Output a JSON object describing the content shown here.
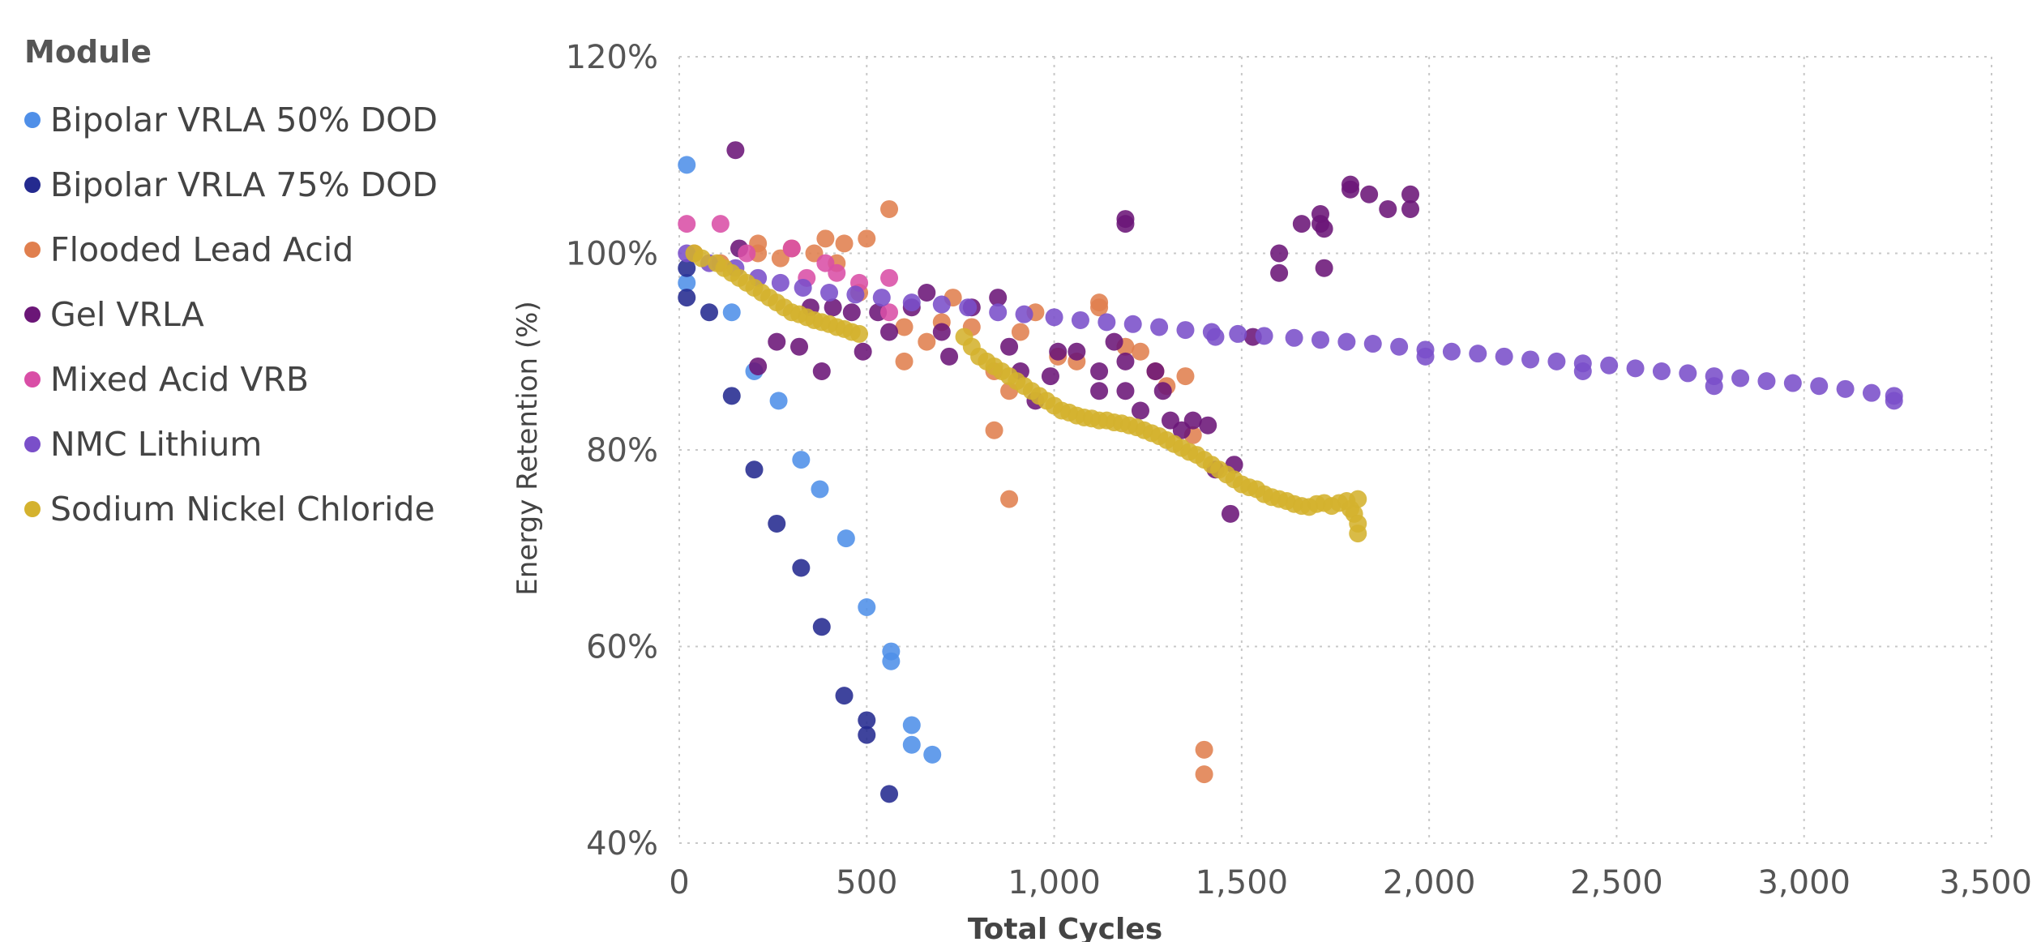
{
  "legend": {
    "title": "Module",
    "items": [
      {
        "label": "Bipolar VRLA 50% DOD",
        "color": "#4f8fe8"
      },
      {
        "label": "Bipolar VRLA 75% DOD",
        "color": "#242a8f"
      },
      {
        "label": "Flooded Lead Acid",
        "color": "#e07f4e"
      },
      {
        "label": "Gel VRLA",
        "color": "#6b1677"
      },
      {
        "label": "Mixed Acid VRB",
        "color": "#d94ea6"
      },
      {
        "label": "NMC Lithium",
        "color": "#7a4fc9"
      },
      {
        "label": "Sodium Nickel Chloride",
        "color": "#d4b22e"
      }
    ]
  },
  "chart_data": {
    "type": "scatter",
    "xlabel": "Total Cycles",
    "ylabel": "Energy Retention (%)",
    "xlim": [
      0,
      3500
    ],
    "ylim": [
      40,
      120
    ],
    "xticks": [
      0,
      500,
      1000,
      1500,
      2000,
      2500,
      3000,
      3500
    ],
    "xtick_labels": [
      "0",
      "500",
      "1,000",
      "1,500",
      "2,000",
      "2,500",
      "3,000",
      "3,500"
    ],
    "yticks": [
      40,
      60,
      80,
      100,
      120
    ],
    "ytick_labels": [
      "40%",
      "60%",
      "80%",
      "100%",
      "120%"
    ],
    "grid": true,
    "legend_position": "left",
    "series": [
      {
        "name": "Bipolar VRLA 50% DOD",
        "color": "#4f8fe8",
        "points": [
          [
            20,
            109
          ],
          [
            20,
            97
          ],
          [
            140,
            94
          ],
          [
            200,
            88
          ],
          [
            265,
            85
          ],
          [
            325,
            79
          ],
          [
            375,
            76
          ],
          [
            445,
            71
          ],
          [
            500,
            64
          ],
          [
            565,
            59.5
          ],
          [
            565,
            58.5
          ],
          [
            620,
            52
          ],
          [
            620,
            50
          ],
          [
            675,
            49
          ]
        ]
      },
      {
        "name": "Bipolar VRLA 75% DOD",
        "color": "#242a8f",
        "points": [
          [
            20,
            98.5
          ],
          [
            20,
            95.5
          ],
          [
            80,
            94
          ],
          [
            140,
            85.5
          ],
          [
            200,
            78
          ],
          [
            260,
            72.5
          ],
          [
            325,
            68
          ],
          [
            380,
            62
          ],
          [
            440,
            55
          ],
          [
            500,
            52.5
          ],
          [
            500,
            51
          ],
          [
            560,
            45
          ]
        ]
      },
      {
        "name": "Flooded Lead Acid",
        "color": "#e07f4e",
        "points": [
          [
            40,
            100
          ],
          [
            110,
            99
          ],
          [
            210,
            101
          ],
          [
            210,
            100
          ],
          [
            270,
            99.5
          ],
          [
            300,
            100.5
          ],
          [
            360,
            100
          ],
          [
            390,
            101.5
          ],
          [
            440,
            101
          ],
          [
            500,
            101.5
          ],
          [
            560,
            104.5
          ],
          [
            420,
            99
          ],
          [
            480,
            96
          ],
          [
            600,
            92.5
          ],
          [
            600,
            89
          ],
          [
            660,
            91
          ],
          [
            700,
            93
          ],
          [
            730,
            95.5
          ],
          [
            780,
            92.5
          ],
          [
            840,
            88
          ],
          [
            840,
            82
          ],
          [
            880,
            86
          ],
          [
            880,
            75
          ],
          [
            910,
            92
          ],
          [
            950,
            94
          ],
          [
            1010,
            89.5
          ],
          [
            1060,
            89
          ],
          [
            1120,
            95
          ],
          [
            1120,
            94.5
          ],
          [
            1190,
            90.5
          ],
          [
            1230,
            90
          ],
          [
            1270,
            88
          ],
          [
            1300,
            86.5
          ],
          [
            1350,
            87.5
          ],
          [
            1370,
            81.5
          ],
          [
            1400,
            49.5
          ],
          [
            1400,
            47
          ]
        ]
      },
      {
        "name": "Gel VRLA",
        "color": "#6b1677",
        "points": [
          [
            150,
            110.5
          ],
          [
            160,
            100.5
          ],
          [
            210,
            88.5
          ],
          [
            260,
            91
          ],
          [
            320,
            90.5
          ],
          [
            350,
            94.5
          ],
          [
            380,
            88
          ],
          [
            410,
            94.5
          ],
          [
            460,
            94
          ],
          [
            490,
            90
          ],
          [
            530,
            94
          ],
          [
            560,
            92
          ],
          [
            620,
            94.5
          ],
          [
            660,
            96
          ],
          [
            700,
            92
          ],
          [
            720,
            89.5
          ],
          [
            780,
            94.5
          ],
          [
            850,
            95.5
          ],
          [
            880,
            90.5
          ],
          [
            910,
            88
          ],
          [
            950,
            85
          ],
          [
            990,
            87.5
          ],
          [
            1010,
            90
          ],
          [
            1060,
            90
          ],
          [
            1120,
            88
          ],
          [
            1120,
            86
          ],
          [
            1160,
            91
          ],
          [
            1190,
            103
          ],
          [
            1190,
            103.5
          ],
          [
            1190,
            89
          ],
          [
            1190,
            86
          ],
          [
            1230,
            84
          ],
          [
            1270,
            88
          ],
          [
            1290,
            86
          ],
          [
            1310,
            83
          ],
          [
            1340,
            82
          ],
          [
            1370,
            83
          ],
          [
            1410,
            82.5
          ],
          [
            1430,
            78
          ],
          [
            1470,
            73.5
          ],
          [
            1480,
            78.5
          ],
          [
            1530,
            91.5
          ],
          [
            1600,
            100
          ],
          [
            1600,
            98
          ],
          [
            1660,
            103
          ],
          [
            1710,
            104
          ],
          [
            1710,
            103
          ],
          [
            1720,
            98.5
          ],
          [
            1720,
            102.5
          ],
          [
            1790,
            107
          ],
          [
            1790,
            106.5
          ],
          [
            1840,
            106
          ],
          [
            1890,
            104.5
          ],
          [
            1950,
            106
          ],
          [
            1950,
            104.5
          ]
        ]
      },
      {
        "name": "Mixed Acid VRB",
        "color": "#d94ea6",
        "points": [
          [
            20,
            103
          ],
          [
            110,
            103
          ],
          [
            180,
            100
          ],
          [
            300,
            100.5
          ],
          [
            340,
            97.5
          ],
          [
            390,
            99
          ],
          [
            420,
            98
          ],
          [
            480,
            97
          ],
          [
            560,
            97.5
          ],
          [
            560,
            94
          ]
        ]
      },
      {
        "name": "NMC Lithium",
        "color": "#7a4fc9",
        "points": [
          [
            20,
            100
          ],
          [
            80,
            99
          ],
          [
            150,
            98.5
          ],
          [
            210,
            97.5
          ],
          [
            270,
            97
          ],
          [
            330,
            96.5
          ],
          [
            400,
            96
          ],
          [
            470,
            95.8
          ],
          [
            540,
            95.5
          ],
          [
            620,
            95
          ],
          [
            700,
            94.8
          ],
          [
            770,
            94.5
          ],
          [
            850,
            94
          ],
          [
            920,
            93.8
          ],
          [
            1000,
            93.5
          ],
          [
            1070,
            93.2
          ],
          [
            1140,
            93
          ],
          [
            1210,
            92.8
          ],
          [
            1280,
            92.5
          ],
          [
            1350,
            92.2
          ],
          [
            1420,
            92
          ],
          [
            1490,
            91.8
          ],
          [
            1560,
            91.6
          ],
          [
            1640,
            91.4
          ],
          [
            1710,
            91.2
          ],
          [
            1780,
            91
          ],
          [
            1850,
            90.8
          ],
          [
            1920,
            90.5
          ],
          [
            1990,
            90.2
          ],
          [
            2060,
            90
          ],
          [
            2130,
            89.8
          ],
          [
            2200,
            89.5
          ],
          [
            2270,
            89.2
          ],
          [
            2340,
            89
          ],
          [
            2410,
            88.8
          ],
          [
            2480,
            88.6
          ],
          [
            2550,
            88.3
          ],
          [
            2620,
            88
          ],
          [
            2690,
            87.8
          ],
          [
            2760,
            87.5
          ],
          [
            2830,
            87.3
          ],
          [
            2900,
            87
          ],
          [
            2970,
            86.8
          ],
          [
            3040,
            86.5
          ],
          [
            3110,
            86.2
          ],
          [
            3180,
            85.8
          ],
          [
            3240,
            85.5
          ],
          [
            3240,
            85
          ],
          [
            1430,
            91.5
          ],
          [
            1990,
            89.5
          ],
          [
            2410,
            88
          ],
          [
            2760,
            86.5
          ]
        ]
      },
      {
        "name": "Sodium Nickel Chloride",
        "color": "#d4b22e",
        "points": [
          [
            40,
            100
          ],
          [
            60,
            99.5
          ],
          [
            100,
            99
          ],
          [
            120,
            98.5
          ],
          [
            140,
            98
          ],
          [
            160,
            97.5
          ],
          [
            180,
            97
          ],
          [
            200,
            96.5
          ],
          [
            220,
            96
          ],
          [
            240,
            95.5
          ],
          [
            260,
            95
          ],
          [
            280,
            94.5
          ],
          [
            300,
            94
          ],
          [
            320,
            93.8
          ],
          [
            340,
            93.5
          ],
          [
            360,
            93.2
          ],
          [
            380,
            93
          ],
          [
            400,
            92.8
          ],
          [
            420,
            92.5
          ],
          [
            440,
            92.3
          ],
          [
            460,
            92
          ],
          [
            480,
            91.8
          ],
          [
            760,
            91.5
          ],
          [
            780,
            90.5
          ],
          [
            800,
            89.5
          ],
          [
            820,
            89
          ],
          [
            840,
            88.5
          ],
          [
            860,
            88
          ],
          [
            880,
            87.5
          ],
          [
            900,
            87
          ],
          [
            920,
            86.5
          ],
          [
            940,
            86
          ],
          [
            960,
            85.5
          ],
          [
            980,
            85
          ],
          [
            1000,
            84.5
          ],
          [
            1020,
            84
          ],
          [
            1040,
            83.8
          ],
          [
            1060,
            83.5
          ],
          [
            1080,
            83.3
          ],
          [
            1100,
            83.2
          ],
          [
            1120,
            83
          ],
          [
            1140,
            83
          ],
          [
            1160,
            82.8
          ],
          [
            1180,
            82.7
          ],
          [
            1200,
            82.5
          ],
          [
            1220,
            82.3
          ],
          [
            1240,
            82
          ],
          [
            1260,
            81.7
          ],
          [
            1280,
            81.4
          ],
          [
            1300,
            81
          ],
          [
            1320,
            80.6
          ],
          [
            1340,
            80.2
          ],
          [
            1360,
            79.8
          ],
          [
            1380,
            79.5
          ],
          [
            1400,
            79
          ],
          [
            1420,
            78.5
          ],
          [
            1440,
            78
          ],
          [
            1460,
            77.5
          ],
          [
            1480,
            77
          ],
          [
            1500,
            76.5
          ],
          [
            1520,
            76.2
          ],
          [
            1540,
            76
          ],
          [
            1560,
            75.5
          ],
          [
            1580,
            75.2
          ],
          [
            1600,
            75
          ],
          [
            1620,
            74.8
          ],
          [
            1640,
            74.5
          ],
          [
            1660,
            74.3
          ],
          [
            1680,
            74.2
          ],
          [
            1700,
            74.5
          ],
          [
            1720,
            74.6
          ],
          [
            1740,
            74.3
          ],
          [
            1760,
            74.6
          ],
          [
            1780,
            74.8
          ],
          [
            1790,
            74
          ],
          [
            1800,
            73.5
          ],
          [
            1810,
            72.5
          ],
          [
            1810,
            71.5
          ],
          [
            1810,
            75
          ]
        ]
      }
    ]
  }
}
